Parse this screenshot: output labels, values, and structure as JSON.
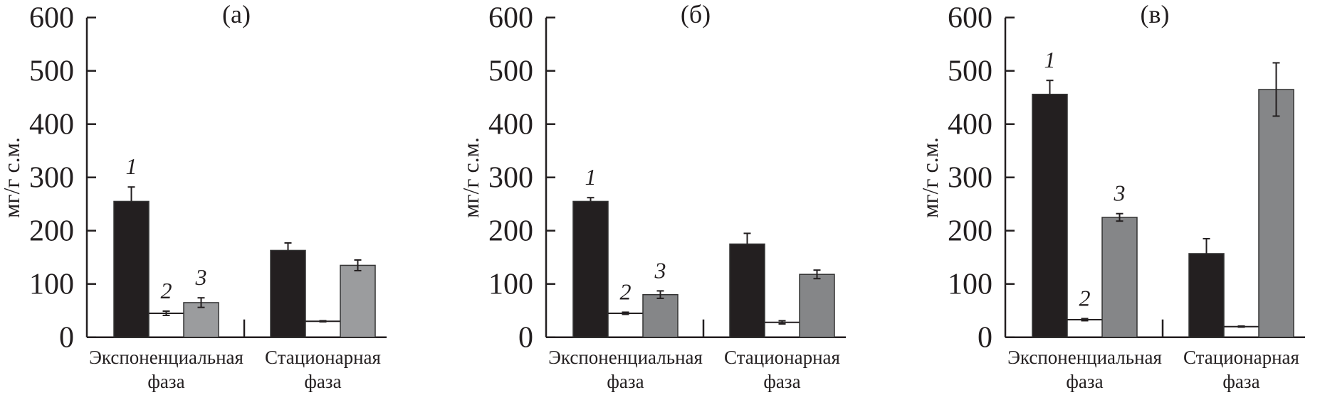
{
  "chart_data": [
    {
      "type": "bar",
      "title": "(a)",
      "ylabel": "мг/г с.м.",
      "ylim": [
        0,
        600
      ],
      "yticks": [
        "0",
        "100",
        "200",
        "300",
        "400",
        "500",
        "600"
      ],
      "categories": [
        [
          "Экспоненциальная",
          "фаза"
        ],
        [
          "Стационарная",
          "фаза"
        ]
      ],
      "series": [
        {
          "name": "1",
          "color": "#231f20",
          "values": [
            255,
            163
          ],
          "errors": [
            27,
            14
          ]
        },
        {
          "name": "2",
          "color": "#ffffff",
          "values": [
            45,
            30
          ],
          "errors": [
            4,
            1
          ]
        },
        {
          "name": "3",
          "color": "#9b9c9e",
          "values": [
            65,
            135
          ],
          "errors": [
            9,
            10
          ]
        }
      ]
    },
    {
      "type": "bar",
      "title": "(б)",
      "ylabel": "мг/г с.м.",
      "ylim": [
        0,
        600
      ],
      "yticks": [
        "0",
        "100",
        "200",
        "300",
        "400",
        "500",
        "600"
      ],
      "categories": [
        [
          "Экспоненциальная",
          "фаза"
        ],
        [
          "Стационарная",
          "фаза"
        ]
      ],
      "series": [
        {
          "name": "1",
          "color": "#231f20",
          "values": [
            255,
            175
          ],
          "errors": [
            7,
            20
          ]
        },
        {
          "name": "2",
          "color": "#ffffff",
          "values": [
            45,
            28
          ],
          "errors": [
            2,
            3
          ]
        },
        {
          "name": "3",
          "color": "#858688",
          "values": [
            80,
            118
          ],
          "errors": [
            7,
            8
          ]
        }
      ]
    },
    {
      "type": "bar",
      "title": "(в)",
      "ylabel": "мг/г с.м.",
      "ylim": [
        0,
        600
      ],
      "yticks": [
        "0",
        "100",
        "200",
        "300",
        "400",
        "500",
        "600"
      ],
      "categories": [
        [
          "Экспоненциальная",
          "фаза"
        ],
        [
          "Стационарная",
          "фаза"
        ]
      ],
      "series": [
        {
          "name": "1",
          "color": "#231f20",
          "values": [
            456,
            157
          ],
          "errors": [
            26,
            28
          ]
        },
        {
          "name": "2",
          "color": "#ffffff",
          "values": [
            33,
            20
          ],
          "errors": [
            2,
            1
          ]
        },
        {
          "name": "3",
          "color": "#858688",
          "values": [
            225,
            465
          ],
          "errors": [
            7,
            50
          ]
        }
      ]
    }
  ]
}
